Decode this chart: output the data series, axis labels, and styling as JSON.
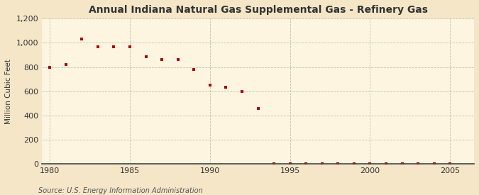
{
  "title": "Annual Indiana Natural Gas Supplemental Gas - Refinery Gas",
  "ylabel": "Million Cubic Feet",
  "source": "Source: U.S. Energy Information Administration",
  "background_color": "#f5e6c8",
  "plot_background_color": "#fdf5e0",
  "marker_color": "#aa0000",
  "marker": "s",
  "marker_size": 3.5,
  "xlim": [
    1979.5,
    2006.5
  ],
  "ylim": [
    0,
    1200
  ],
  "yticks": [
    0,
    200,
    400,
    600,
    800,
    1000,
    1200
  ],
  "xticks": [
    1980,
    1985,
    1990,
    1995,
    2000,
    2005
  ],
  "years": [
    1980,
    1981,
    1982,
    1983,
    1984,
    1985,
    1986,
    1987,
    1988,
    1989,
    1990,
    1991,
    1992,
    1993,
    1994,
    1995,
    1996,
    1997,
    1998,
    1999,
    2000,
    2001,
    2002,
    2003,
    2004,
    2005
  ],
  "values": [
    800,
    820,
    1030,
    965,
    965,
    965,
    885,
    860,
    860,
    780,
    650,
    635,
    600,
    455,
    3,
    3,
    3,
    3,
    3,
    3,
    3,
    3,
    3,
    3,
    3,
    3
  ]
}
